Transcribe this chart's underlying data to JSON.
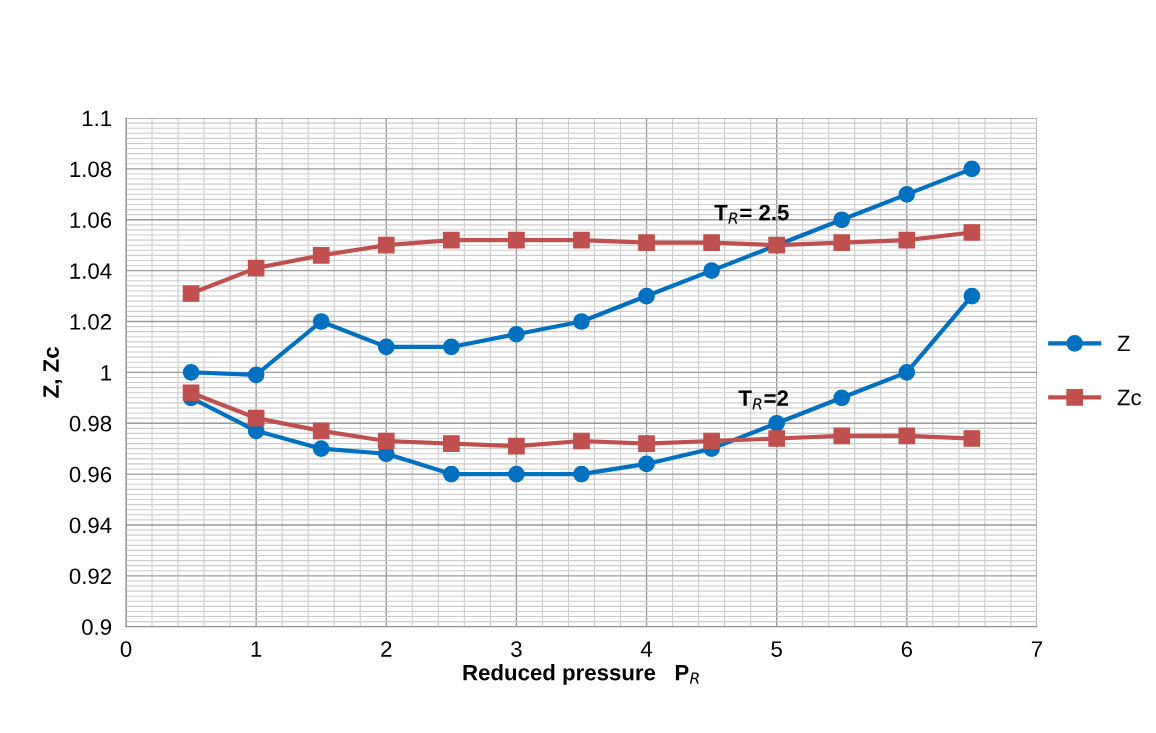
{
  "chart_data": {
    "type": "line",
    "xlabel": "Reduced pressure   P$_{R}$",
    "ylabel": "Z, Zc",
    "x": [
      0.5,
      1,
      1.5,
      2,
      2.5,
      3,
      3.5,
      4,
      4.5,
      5,
      5.5,
      6,
      6.5
    ],
    "series": [
      {
        "name": "Z",
        "color": "#0070c0",
        "marker": "circle",
        "values": [
          1.0,
          0.999,
          1.02,
          1.01,
          1.01,
          1.015,
          1.02,
          1.03,
          1.04,
          1.05,
          1.06,
          1.07,
          1.08
        ]
      },
      {
        "name": "Zc",
        "color": "#c0504d",
        "marker": "square",
        "values": [
          1.031,
          1.041,
          1.046,
          1.05,
          1.052,
          1.052,
          1.052,
          1.051,
          1.051,
          1.05,
          1.051,
          1.052,
          1.055
        ]
      },
      {
        "color": "#0070c0",
        "marker": "circle",
        "values": [
          0.99,
          0.977,
          0.97,
          0.968,
          0.96,
          0.96,
          0.96,
          0.964,
          0.97,
          0.98,
          0.99,
          1.0,
          1.03
        ]
      },
      {
        "color": "#c0504d",
        "marker": "square",
        "values": [
          0.992,
          0.982,
          0.977,
          0.973,
          0.972,
          0.971,
          0.973,
          0.972,
          0.973,
          0.974,
          0.975,
          0.975,
          0.974
        ]
      }
    ],
    "annotations": [
      "T$_{R}$= 2.5",
      "T$_{R}$=2"
    ],
    "xlim": [
      0,
      7
    ],
    "xticks": [
      0,
      1,
      2,
      3,
      4,
      5,
      6,
      7
    ],
    "ylim": [
      0.9,
      1.1
    ],
    "yticks": [
      0.9,
      0.92,
      0.94,
      0.96,
      0.98,
      1,
      1.02,
      1.04,
      1.06,
      1.08,
      1.1
    ],
    "grid": true,
    "legend": "right",
    "line_style": "solid"
  }
}
